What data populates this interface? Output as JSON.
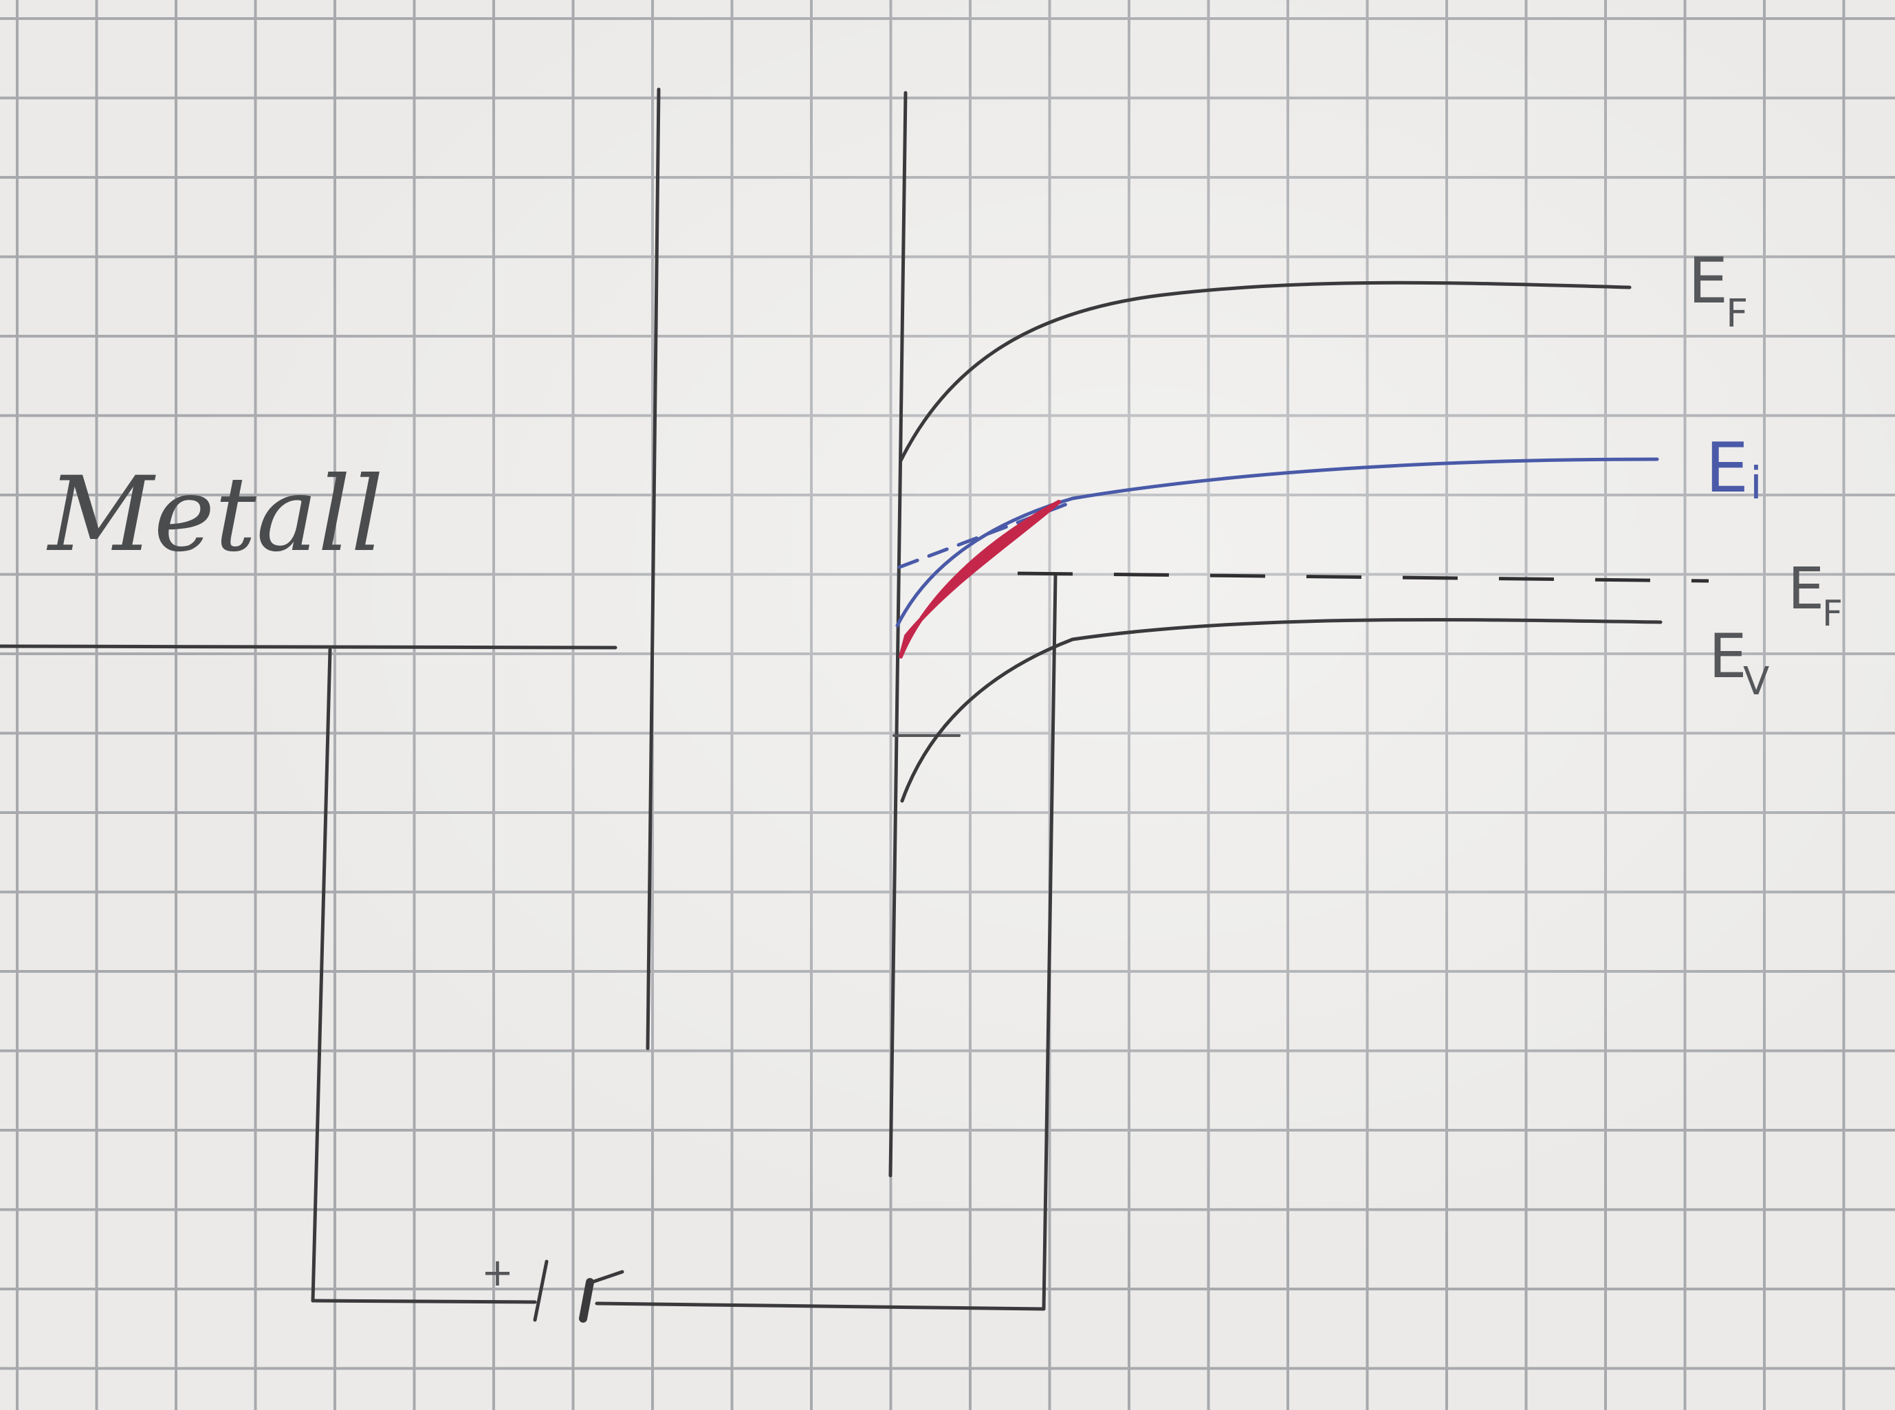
{
  "labels": {
    "material": "Metall",
    "conduction_band": "E",
    "conduction_band_sub": "F",
    "intrinsic_level": "E",
    "intrinsic_level_sub": "i",
    "fermi_level": "E",
    "fermi_level_sub": "F",
    "valence_band": "E",
    "valence_band_sub": "V",
    "battery_plus": "+",
    "battery_minus": "−"
  },
  "colors": {
    "pencil": "#3a3a3c",
    "intrinsic_level": "#4a5aa8",
    "inversion_region": "#c4274a",
    "paper": "#ebeae8",
    "grid": "#a7a9ad"
  }
}
